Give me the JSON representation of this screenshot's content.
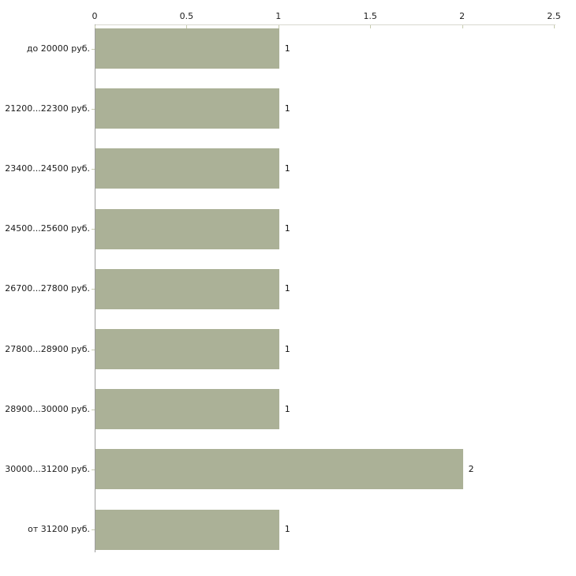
{
  "chart_data": {
    "type": "bar",
    "orientation": "horizontal",
    "title": "",
    "xlabel": "",
    "ylabel": "",
    "grid": false,
    "legend": false,
    "axis_position": "top",
    "categories": [
      "до 20000 руб.",
      "21200...22300 руб.",
      "23400...24500 руб.",
      "24500...25600 руб.",
      "26700...27800 руб.",
      "27800...28900 руб.",
      "28900...30000 руб.",
      "30000...31200 руб.",
      "от 31200 руб."
    ],
    "values": [
      1,
      1,
      1,
      1,
      1,
      1,
      1,
      2,
      1
    ],
    "value_labels": [
      "1",
      "1",
      "1",
      "1",
      "1",
      "1",
      "1",
      "2",
      "1"
    ],
    "x_ticks": [
      0,
      0.5,
      1,
      1.5,
      2,
      2.5
    ],
    "x_tick_labels": [
      "0",
      "0.5",
      "1",
      "1.5",
      "2",
      "2.5"
    ],
    "xlim": [
      0,
      2.5
    ],
    "colors": {
      "bar_fill": "#abb197",
      "axis_top_line": "#d8d8d0",
      "axis_left_line": "#9d9d9d",
      "tick_mark": "#c6cbae",
      "label_text": "#1c1c1c",
      "background": "#ffffff"
    }
  }
}
